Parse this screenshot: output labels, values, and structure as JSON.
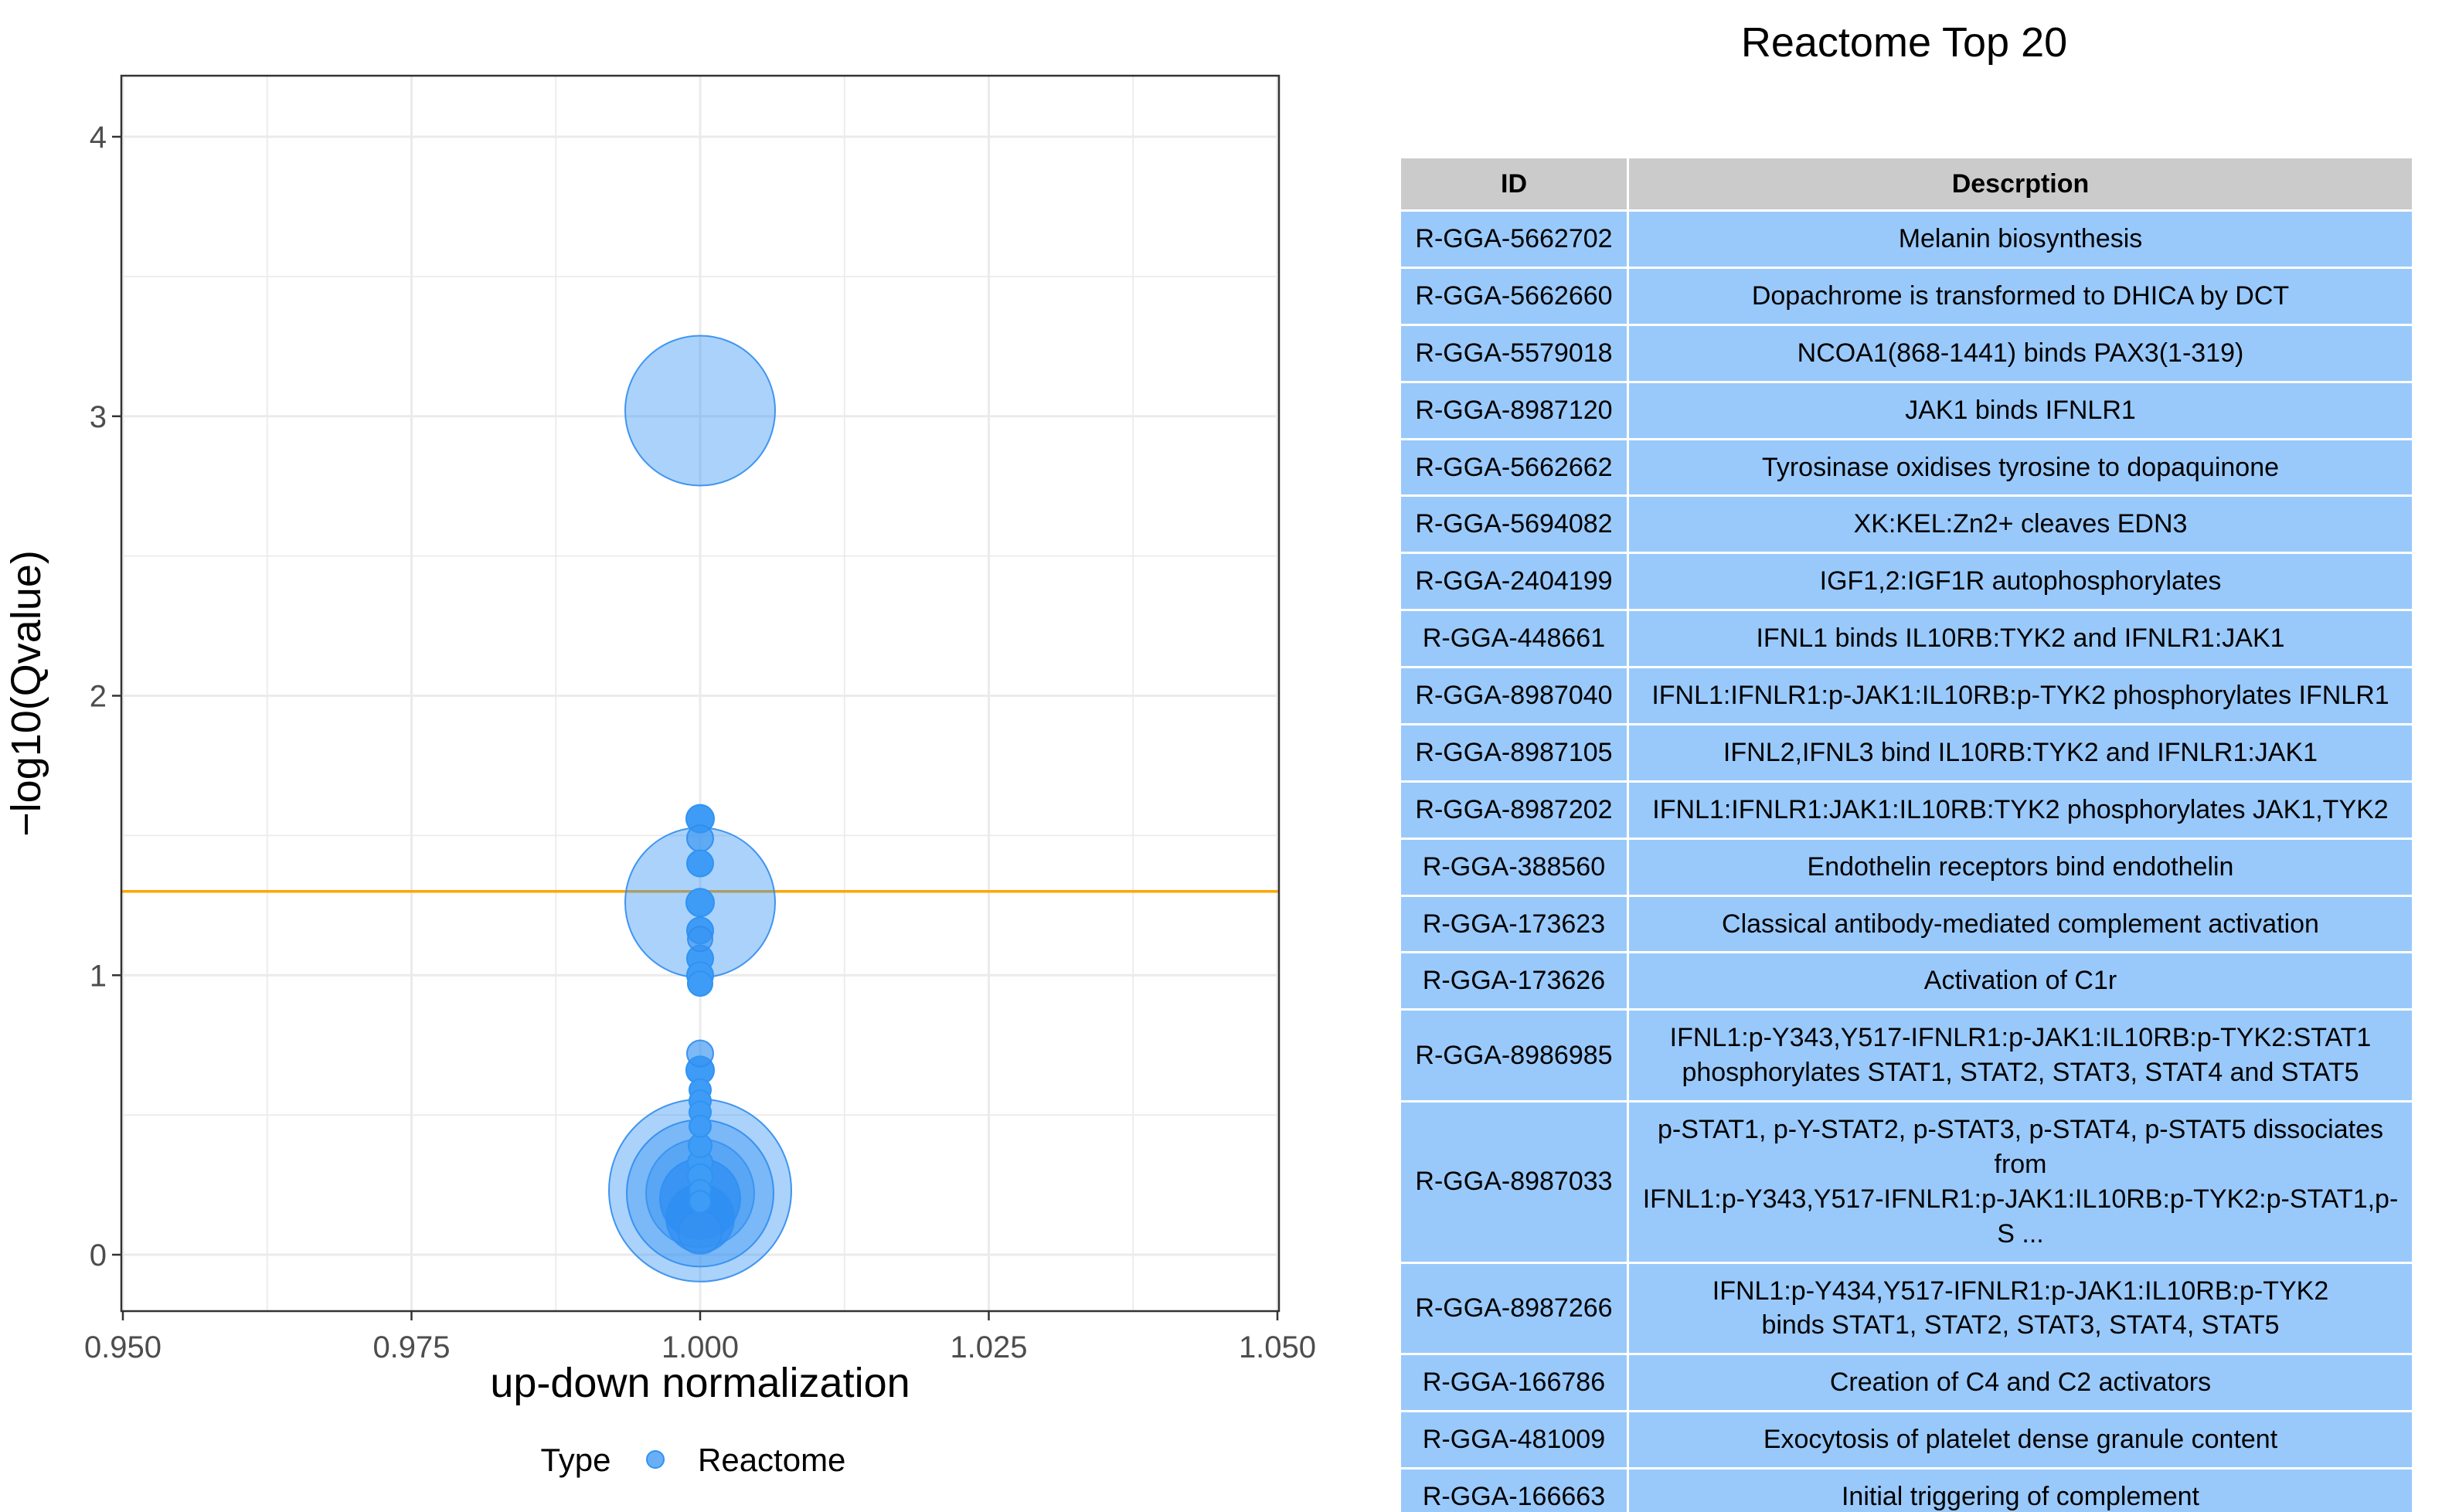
{
  "chart_data": {
    "type": "scatter",
    "title": "",
    "xlabel": "up-down normalization",
    "ylabel": "−log10(Qvalue)",
    "xlim": [
      0.95,
      1.05
    ],
    "ylim": [
      -0.2,
      4.2
    ],
    "x_ticks": [
      "0.950",
      "0.975",
      "1.000",
      "1.025",
      "1.050"
    ],
    "y_ticks": [
      "0",
      "1",
      "2",
      "3",
      "4"
    ],
    "grid": true,
    "legend": {
      "title": "Type",
      "position": "bottom",
      "entries": [
        {
          "label": "Reactome"
        }
      ]
    },
    "threshold_line": {
      "y": 1.3,
      "color": "#FFA500"
    },
    "series": [
      {
        "name": "Reactome",
        "points": [
          {
            "x": 1.0,
            "y": 3.02,
            "r": 97,
            "shade": "light"
          },
          {
            "x": 1.0,
            "y": 1.56,
            "r": 18,
            "shade": "dark"
          },
          {
            "x": 1.0,
            "y": 1.49,
            "r": 17,
            "shade": "mid"
          },
          {
            "x": 1.0,
            "y": 1.4,
            "r": 17,
            "shade": "dark"
          },
          {
            "x": 1.0,
            "y": 1.26,
            "r": 97,
            "shade": "light"
          },
          {
            "x": 1.0,
            "y": 1.26,
            "r": 18,
            "shade": "dark"
          },
          {
            "x": 1.0,
            "y": 1.16,
            "r": 17,
            "shade": "dark"
          },
          {
            "x": 1.0,
            "y": 1.13,
            "r": 16,
            "shade": "mid"
          },
          {
            "x": 1.0,
            "y": 1.06,
            "r": 17,
            "shade": "dark"
          },
          {
            "x": 1.0,
            "y": 1.0,
            "r": 17,
            "shade": "dark"
          },
          {
            "x": 1.0,
            "y": 0.97,
            "r": 16,
            "shade": "dark"
          },
          {
            "x": 1.0,
            "y": 0.72,
            "r": 17,
            "shade": "mid"
          },
          {
            "x": 1.0,
            "y": 0.66,
            "r": 18,
            "shade": "dark"
          },
          {
            "x": 1.0,
            "y": 0.59,
            "r": 14,
            "shade": "dark"
          },
          {
            "x": 1.0,
            "y": 0.55,
            "r": 14,
            "shade": "dark"
          },
          {
            "x": 1.0,
            "y": 0.51,
            "r": 14,
            "shade": "dark"
          },
          {
            "x": 1.0,
            "y": 0.46,
            "r": 14,
            "shade": "dark"
          },
          {
            "x": 1.0,
            "y": 0.39,
            "r": 15,
            "shade": "dark"
          },
          {
            "x": 1.0,
            "y": 0.33,
            "r": 16,
            "shade": "dark"
          },
          {
            "x": 1.0,
            "y": 0.28,
            "r": 16,
            "shade": "dark"
          },
          {
            "x": 1.0,
            "y": 0.23,
            "r": 14,
            "shade": "dark"
          },
          {
            "x": 1.0,
            "y": 0.19,
            "r": 14,
            "shade": "dark"
          },
          {
            "x": 1.0,
            "y": 0.23,
            "r": 118,
            "shade": "light"
          },
          {
            "x": 1.0,
            "y": 0.22,
            "r": 95,
            "shade": "light"
          },
          {
            "x": 1.0,
            "y": 0.22,
            "r": 70,
            "shade": "mid-big"
          },
          {
            "x": 1.0,
            "y": 0.2,
            "r": 52,
            "shade": "dark-big"
          },
          {
            "x": 1.0,
            "y": 0.13,
            "r": 44,
            "shade": "dark-big"
          },
          {
            "x": 1.0,
            "y": 0.08,
            "r": 28,
            "shade": "mid-big"
          }
        ]
      }
    ]
  },
  "table": {
    "title": "Reactome Top 20",
    "headers": [
      "ID",
      "Descrption"
    ],
    "rows": [
      {
        "id": "R-GGA-5662702",
        "description": "Melanin biosynthesis"
      },
      {
        "id": "R-GGA-5662660",
        "description": "Dopachrome is transformed to DHICA by DCT"
      },
      {
        "id": "R-GGA-5579018",
        "description": "NCOA1(868-1441) binds PAX3(1-319)"
      },
      {
        "id": "R-GGA-8987120",
        "description": "JAK1 binds IFNLR1"
      },
      {
        "id": "R-GGA-5662662",
        "description": "Tyrosinase oxidises tyrosine to dopaquinone"
      },
      {
        "id": "R-GGA-5694082",
        "description": "XK:KEL:Zn2+ cleaves EDN3"
      },
      {
        "id": "R-GGA-2404199",
        "description": "IGF1,2:IGF1R autophosphorylates"
      },
      {
        "id": "R-GGA-448661",
        "description": "IFNL1 binds IL10RB:TYK2 and IFNLR1:JAK1"
      },
      {
        "id": "R-GGA-8987040",
        "description": "IFNL1:IFNLR1:p-JAK1:IL10RB:p-TYK2 phosphorylates IFNLR1"
      },
      {
        "id": "R-GGA-8987105",
        "description": "IFNL2,IFNL3 bind IL10RB:TYK2 and IFNLR1:JAK1"
      },
      {
        "id": "R-GGA-8987202",
        "description": "IFNL1:IFNLR1:JAK1:IL10RB:TYK2 phosphorylates JAK1,TYK2"
      },
      {
        "id": "R-GGA-388560",
        "description": "Endothelin receptors bind endothelin"
      },
      {
        "id": "R-GGA-173623",
        "description": "Classical antibody-mediated complement activation"
      },
      {
        "id": "R-GGA-173626",
        "description": "Activation of C1r"
      },
      {
        "id": "R-GGA-8986985",
        "description": "IFNL1:p-Y343,Y517-IFNLR1:p-JAK1:IL10RB:p-TYK2:STAT1\nphosphorylates STAT1, STAT2, STAT3, STAT4 and STAT5"
      },
      {
        "id": "R-GGA-8987033",
        "description": "p-STAT1, p-Y-STAT2, p-STAT3, p-STAT4, p-STAT5 dissociates from\nIFNL1:p-Y343,Y517-IFNLR1:p-JAK1:IL10RB:p-TYK2:p-STAT1,p-S ..."
      },
      {
        "id": "R-GGA-8987266",
        "description": "IFNL1:p-Y434,Y517-IFNLR1:p-JAK1:IL10RB:p-TYK2\nbinds STAT1, STAT2, STAT3, STAT4, STAT5"
      },
      {
        "id": "R-GGA-166786",
        "description": "Creation of C4 and C2 activators"
      },
      {
        "id": "R-GGA-481009",
        "description": "Exocytosis of platelet dense granule content"
      },
      {
        "id": "R-GGA-166663",
        "description": "Initial triggering of complement"
      }
    ]
  },
  "style": {
    "cell_bg": "#99C9FB",
    "header_bg": "#CBCBCB",
    "grid_color": "#EBEBEB",
    "panel_border": "#333333",
    "tick_label_color": "#4D4D4D",
    "threshold_color": "#FFA500",
    "bubble_dark": "#3E9CF6",
    "bubble_stroke": "#2F93F4"
  }
}
